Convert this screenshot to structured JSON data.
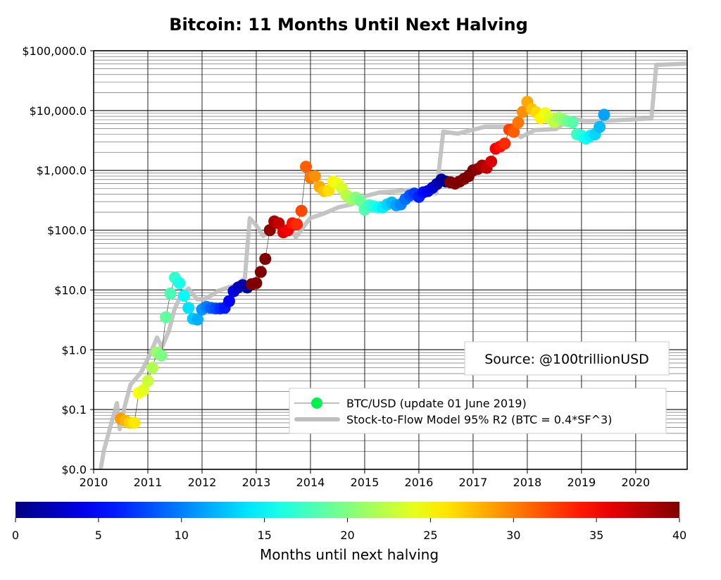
{
  "chart_data": {
    "type": "scatter",
    "title": "Bitcoin: 11 Months Until Next Halving",
    "yscale": "log",
    "ylim": [
      0.01,
      100000
    ],
    "xlim": [
      2010,
      2020.95
    ],
    "grid": true,
    "y_ticks": [
      {
        "value": 100000,
        "label": "$100,000.0"
      },
      {
        "value": 10000,
        "label": "$10,000.0"
      },
      {
        "value": 1000,
        "label": "$1,000.0"
      },
      {
        "value": 100,
        "label": "$100.0"
      },
      {
        "value": 10,
        "label": "$10.0"
      },
      {
        "value": 1,
        "label": "$1.0"
      },
      {
        "value": 0.1,
        "label": "$0.1"
      },
      {
        "value": 0.01,
        "label": "$0.0"
      }
    ],
    "x_ticks": [
      "2010",
      "2011",
      "2012",
      "2013",
      "2014",
      "2015",
      "2016",
      "2017",
      "2018",
      "2019",
      "2020"
    ],
    "legend_placement": "lower-right",
    "source_note": "Source: @100trillionUSD",
    "series": [
      {
        "name": "BTC/USD (update 01 June 2019)",
        "style": "markers colored by months until next halving",
        "points": [
          [
            "2010-07",
            0.07
          ],
          [
            "2010-08",
            0.065
          ],
          [
            "2010-09",
            0.06
          ],
          [
            "2010-10",
            0.06
          ],
          [
            "2010-11",
            0.19
          ],
          [
            "2010-12",
            0.21
          ],
          [
            "2011-01",
            0.3
          ],
          [
            "2011-02",
            0.5
          ],
          [
            "2011-03",
            0.9
          ],
          [
            "2011-04",
            0.8
          ],
          [
            "2011-05",
            3.5
          ],
          [
            "2011-06",
            8.7
          ],
          [
            "2011-07",
            16
          ],
          [
            "2011-08",
            13
          ],
          [
            "2011-09",
            8
          ],
          [
            "2011-10",
            5
          ],
          [
            "2011-11",
            3.3
          ],
          [
            "2011-12",
            3.2
          ],
          [
            "2012-01",
            4.7
          ],
          [
            "2012-02",
            5.2
          ],
          [
            "2012-03",
            5
          ],
          [
            "2012-04",
            4.9
          ],
          [
            "2012-05",
            4.9
          ],
          [
            "2012-06",
            5
          ],
          [
            "2012-07",
            6.5
          ],
          [
            "2012-08",
            9.5
          ],
          [
            "2012-09",
            11
          ],
          [
            "2012-10",
            12
          ],
          [
            "2012-11",
            11
          ],
          [
            "2012-12",
            12.5
          ],
          [
            "2013-01",
            13
          ],
          [
            "2013-02",
            20
          ],
          [
            "2013-03",
            33
          ],
          [
            "2013-04",
            100
          ],
          [
            "2013-05",
            140
          ],
          [
            "2013-06",
            130
          ],
          [
            "2013-07",
            92
          ],
          [
            "2013-08",
            100
          ],
          [
            "2013-09",
            130
          ],
          [
            "2013-10",
            125
          ],
          [
            "2013-11",
            210
          ],
          [
            "2013-12",
            1150
          ],
          [
            "2014-01",
            750
          ],
          [
            "2014-02",
            800
          ],
          [
            "2014-03",
            530
          ],
          [
            "2014-04",
            450
          ],
          [
            "2014-05",
            460
          ],
          [
            "2014-06",
            650
          ],
          [
            "2014-07",
            600
          ],
          [
            "2014-08",
            500
          ],
          [
            "2014-09",
            380
          ],
          [
            "2014-10",
            330
          ],
          [
            "2014-11",
            350
          ],
          [
            "2014-12",
            310
          ],
          [
            "2015-01",
            220
          ],
          [
            "2015-02",
            260
          ],
          [
            "2015-03",
            250
          ],
          [
            "2015-04",
            240
          ],
          [
            "2015-05",
            240
          ],
          [
            "2015-06",
            270
          ],
          [
            "2015-07",
            290
          ],
          [
            "2015-08",
            260
          ],
          [
            "2015-09",
            270
          ],
          [
            "2015-10",
            330
          ],
          [
            "2015-11",
            380
          ],
          [
            "2015-12",
            410
          ],
          [
            "2016-01",
            360
          ],
          [
            "2016-02",
            430
          ],
          [
            "2016-03",
            450
          ],
          [
            "2016-04",
            510
          ],
          [
            "2016-05",
            590
          ],
          [
            "2016-06",
            700
          ],
          [
            "2016-07",
            650
          ],
          [
            "2016-08",
            630
          ],
          [
            "2016-09",
            600
          ],
          [
            "2016-10",
            650
          ],
          [
            "2016-11",
            720
          ],
          [
            "2016-12",
            800
          ],
          [
            "2017-01",
            1000
          ],
          [
            "2017-02",
            1050
          ],
          [
            "2017-03",
            1200
          ],
          [
            "2017-04",
            1100
          ],
          [
            "2017-05",
            1400
          ],
          [
            "2017-06",
            2300
          ],
          [
            "2017-07",
            2500
          ],
          [
            "2017-08",
            2800
          ],
          [
            "2017-09",
            4800
          ],
          [
            "2017-10",
            4400
          ],
          [
            "2017-11",
            6300
          ],
          [
            "2017-12",
            9500
          ],
          [
            "2018-01",
            14000
          ],
          [
            "2018-02",
            10500
          ],
          [
            "2018-03",
            9300
          ],
          [
            "2018-04",
            7400
          ],
          [
            "2018-05",
            9000
          ],
          [
            "2018-06",
            7400
          ],
          [
            "2018-07",
            6400
          ],
          [
            "2018-08",
            7600
          ],
          [
            "2018-09",
            7000
          ],
          [
            "2018-10",
            6600
          ],
          [
            "2018-11",
            6300
          ],
          [
            "2018-12",
            4000
          ],
          [
            "2019-01",
            3800
          ],
          [
            "2019-02",
            3400
          ],
          [
            "2019-03",
            3800
          ],
          [
            "2019-04",
            4000
          ],
          [
            "2019-05",
            5300
          ],
          [
            "2019-06",
            8500
          ]
        ]
      },
      {
        "name": "Stock-to-Flow Model 95% R2 (BTC = 0.4*SF^3)",
        "color": "#bfbfbf",
        "points": [
          [
            2010.13,
            0.01
          ],
          [
            2010.19,
            0.021
          ],
          [
            2010.43,
            0.128
          ],
          [
            2010.48,
            0.047
          ],
          [
            2010.58,
            0.12
          ],
          [
            2010.68,
            0.26
          ],
          [
            2010.87,
            0.41
          ],
          [
            2011.03,
            0.8
          ],
          [
            2011.17,
            1.6
          ],
          [
            2011.26,
            1.1
          ],
          [
            2011.39,
            2.1
          ],
          [
            2011.49,
            4.7
          ],
          [
            2011.62,
            8.5
          ],
          [
            2011.75,
            10.6
          ],
          [
            2011.91,
            7.0
          ],
          [
            2012.04,
            7
          ],
          [
            2012.17,
            8.1
          ],
          [
            2012.3,
            9.7
          ],
          [
            2012.43,
            10.6
          ],
          [
            2012.62,
            12
          ],
          [
            2012.79,
            15.8
          ],
          [
            2012.88,
            158
          ],
          [
            2013.0,
            120
          ],
          [
            2013.13,
            80
          ],
          [
            2013.34,
            105
          ],
          [
            2013.6,
            120
          ],
          [
            2013.73,
            76
          ],
          [
            2013.99,
            158
          ],
          [
            2014.25,
            190
          ],
          [
            2014.51,
            240
          ],
          [
            2014.77,
            272
          ],
          [
            2015.03,
            375
          ],
          [
            2015.29,
            430
          ],
          [
            2015.55,
            445
          ],
          [
            2015.81,
            470
          ],
          [
            2016.06,
            470
          ],
          [
            2016.32,
            410
          ],
          [
            2016.45,
            4460
          ],
          [
            2016.71,
            4100
          ],
          [
            2016.97,
            4700
          ],
          [
            2017.23,
            5400
          ],
          [
            2017.62,
            5400
          ],
          [
            2017.88,
            3600
          ],
          [
            2018.14,
            4700
          ],
          [
            2018.53,
            4900
          ],
          [
            2018.82,
            7400
          ],
          [
            2019.05,
            6700
          ],
          [
            2019.44,
            6700
          ],
          [
            2020.29,
            7400
          ],
          [
            2020.38,
            58000
          ],
          [
            2020.94,
            61000
          ]
        ]
      }
    ],
    "colorbar": {
      "label": "Months until next halving",
      "colormap": "jet",
      "range": [
        0,
        40
      ],
      "ticks": [
        "0",
        "5",
        "10",
        "15",
        "20",
        "25",
        "30",
        "35",
        "40"
      ]
    }
  }
}
